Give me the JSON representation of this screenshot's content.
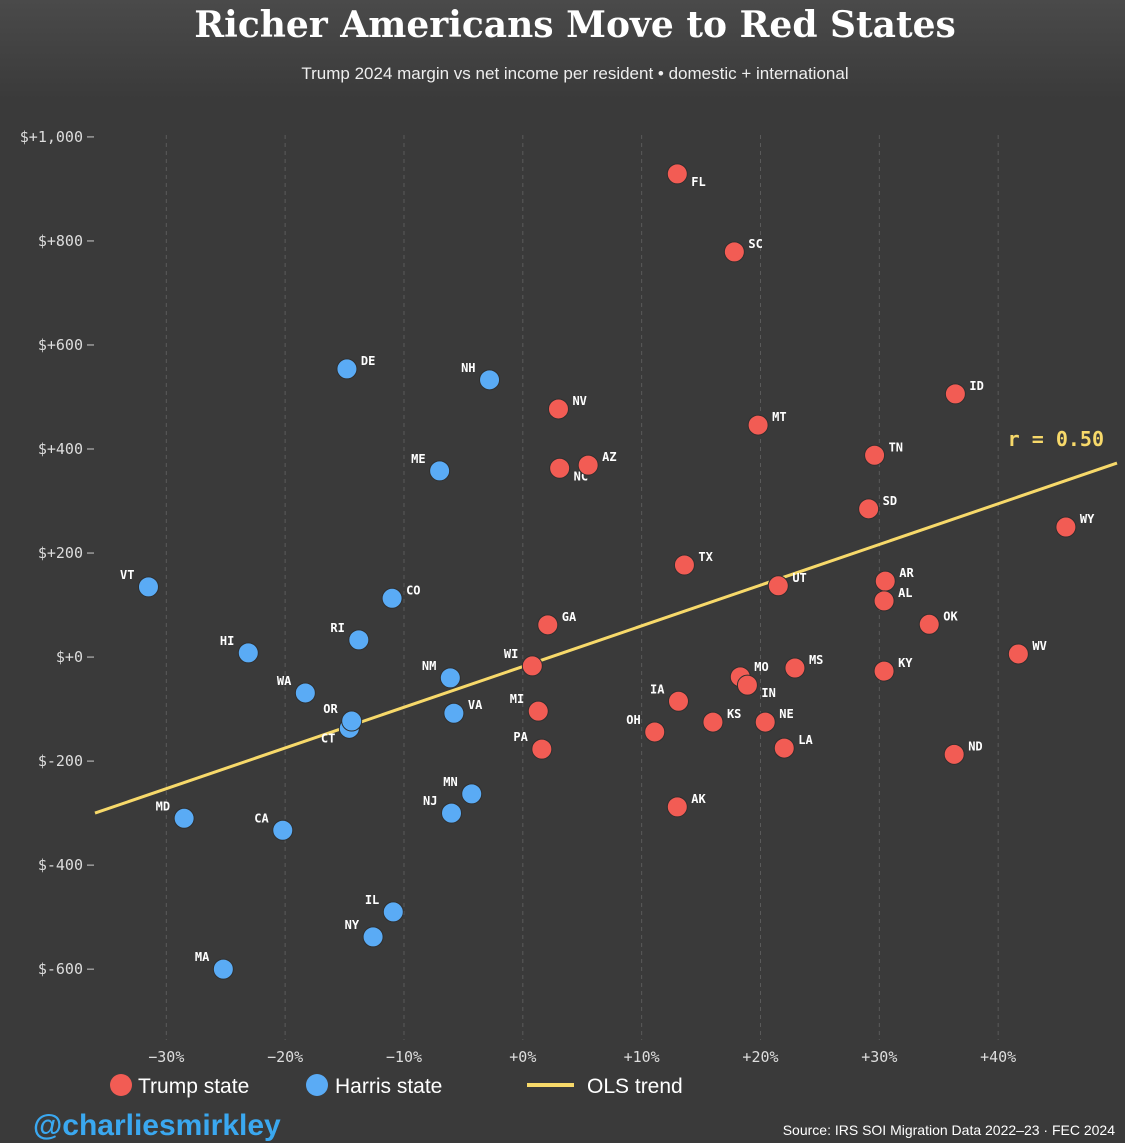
{
  "chart_data": {
    "type": "scatter",
    "title": "Richer Americans Move to Red States",
    "subtitle": "Trump 2024 margin  vs net income per resident • domestic + international",
    "xlim": [
      -36,
      50
    ],
    "ylim": [
      -717,
      1071
    ],
    "x_ticks": [
      -30,
      -20,
      -10,
      0,
      10,
      20,
      30,
      40
    ],
    "x_tick_labels": [
      "−30%",
      "−20%",
      "−10%",
      "+0%",
      "+10%",
      "+20%",
      "+30%",
      "+40%"
    ],
    "y_ticks": [
      1000,
      800,
      600,
      400,
      200,
      0,
      -200,
      -400,
      -600
    ],
    "y_tick_labels": [
      "$+1,000",
      "$+800",
      "$+600",
      "$+400",
      "$+200",
      "$+0",
      "$-200",
      "$-400",
      "$-600"
    ],
    "grid": "vertical dashed",
    "legend_placement": "bottom",
    "colors": {
      "trump": "#f25c54",
      "harris": "#5aabf5",
      "trend": "#f7d96a",
      "background": "#3a3a3a"
    },
    "legend": [
      {
        "label": "Trump state",
        "type": "trump"
      },
      {
        "label": "Harris state",
        "type": "harris"
      },
      {
        "label": "OLS trend",
        "type": "trend"
      }
    ],
    "trend": {
      "label": "r = 0.50",
      "x": [
        -36,
        50
      ],
      "y": [
        -300,
        373
      ]
    },
    "series": [
      {
        "name": "Trump state",
        "points": [
          {
            "state": "FL",
            "x": 13.0,
            "y": 929
          },
          {
            "state": "SC",
            "x": 17.8,
            "y": 779
          },
          {
            "state": "NV",
            "x": 3.0,
            "y": 477
          },
          {
            "state": "MT",
            "x": 19.8,
            "y": 446
          },
          {
            "state": "ID",
            "x": 36.4,
            "y": 506
          },
          {
            "state": "TN",
            "x": 29.6,
            "y": 388
          },
          {
            "state": "NC",
            "x": 3.1,
            "y": 363
          },
          {
            "state": "AZ",
            "x": 5.5,
            "y": 369
          },
          {
            "state": "SD",
            "x": 29.1,
            "y": 285
          },
          {
            "state": "WY",
            "x": 45.7,
            "y": 250
          },
          {
            "state": "TX",
            "x": 13.6,
            "y": 177
          },
          {
            "state": "UT",
            "x": 21.5,
            "y": 137
          },
          {
            "state": "AR",
            "x": 30.5,
            "y": 146
          },
          {
            "state": "AL",
            "x": 30.4,
            "y": 108
          },
          {
            "state": "GA",
            "x": 2.1,
            "y": 62
          },
          {
            "state": "OK",
            "x": 34.2,
            "y": 63
          },
          {
            "state": "WV",
            "x": 41.7,
            "y": 6
          },
          {
            "state": "WI",
            "x": 0.8,
            "y": -17
          },
          {
            "state": "MO",
            "x": 18.3,
            "y": -38
          },
          {
            "state": "IN",
            "x": 18.9,
            "y": -54
          },
          {
            "state": "MS",
            "x": 22.9,
            "y": -21
          },
          {
            "state": "KY",
            "x": 30.4,
            "y": -27
          },
          {
            "state": "IA",
            "x": 13.1,
            "y": -85
          },
          {
            "state": "MI",
            "x": 1.3,
            "y": -104
          },
          {
            "state": "KS",
            "x": 16.0,
            "y": -125
          },
          {
            "state": "NE",
            "x": 20.4,
            "y": -125
          },
          {
            "state": "OH",
            "x": 11.1,
            "y": -144
          },
          {
            "state": "LA",
            "x": 22.0,
            "y": -175
          },
          {
            "state": "PA",
            "x": 1.6,
            "y": -177
          },
          {
            "state": "ND",
            "x": 36.3,
            "y": -187
          },
          {
            "state": "AK",
            "x": 13.0,
            "y": -288
          }
        ]
      },
      {
        "name": "Harris state",
        "points": [
          {
            "state": "DE",
            "x": -14.8,
            "y": 554
          },
          {
            "state": "NH",
            "x": -2.8,
            "y": 533
          },
          {
            "state": "ME",
            "x": -7.0,
            "y": 358
          },
          {
            "state": "VT",
            "x": -31.5,
            "y": 135
          },
          {
            "state": "CO",
            "x": -11.0,
            "y": 113
          },
          {
            "state": "RI",
            "x": -13.8,
            "y": 33
          },
          {
            "state": "HI",
            "x": -23.1,
            "y": 8
          },
          {
            "state": "NM",
            "x": -6.1,
            "y": -40
          },
          {
            "state": "WA",
            "x": -18.3,
            "y": -69
          },
          {
            "state": "CT",
            "x": -14.6,
            "y": -137
          },
          {
            "state": "OR",
            "x": -14.4,
            "y": -123
          },
          {
            "state": "VA",
            "x": -5.8,
            "y": -108
          },
          {
            "state": "MN",
            "x": -4.3,
            "y": -263
          },
          {
            "state": "NJ",
            "x": -6.0,
            "y": -300
          },
          {
            "state": "MD",
            "x": -28.5,
            "y": -310
          },
          {
            "state": "CA",
            "x": -20.2,
            "y": -333
          },
          {
            "state": "IL",
            "x": -10.9,
            "y": -490
          },
          {
            "state": "NY",
            "x": -12.6,
            "y": -538
          },
          {
            "state": "MA",
            "x": -25.2,
            "y": -600
          }
        ]
      }
    ]
  },
  "footer": {
    "handle": "@charliesmirkley",
    "source": "Source: IRS SOI Migration Data 2022–23 · FEC 2024"
  }
}
